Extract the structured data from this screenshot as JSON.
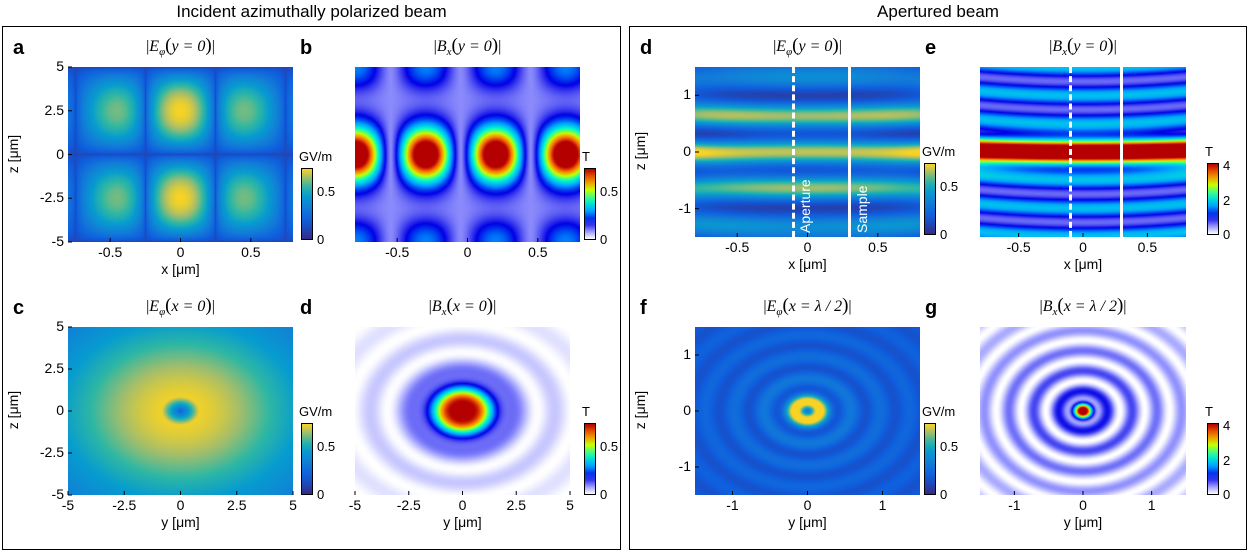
{
  "sections": {
    "left_title": "Incident azimuthally polarized beam",
    "right_title": "Apertured beam"
  },
  "labels": {
    "aperture": "Aperture",
    "sample": "Sample"
  },
  "chart_data": [
    {
      "letter": "a",
      "type": "heatmap",
      "title": "|Eφ(y=0)|",
      "xlabel": "x [μm]",
      "ylabel": "z [μm]",
      "xlim": [
        -0.8,
        0.8
      ],
      "ylim": [
        -5,
        5
      ],
      "xticks": [
        "-0.5",
        "0",
        "0.5"
      ],
      "yticks": [
        "-5",
        "-2.5",
        "0",
        "2.5",
        "5"
      ],
      "colorbar": {
        "unit": "GV/m",
        "ticks": [
          "0",
          "0.5"
        ],
        "colormap": "parula"
      }
    },
    {
      "letter": "b",
      "type": "heatmap",
      "title": "|Bx(y=0)|",
      "xlabel": "",
      "ylabel": "",
      "xlim": [
        -0.8,
        0.8
      ],
      "ylim": [
        -5,
        5
      ],
      "xticks": [
        "-0.5",
        "0",
        "0.5"
      ],
      "yticks": [],
      "colorbar": {
        "unit": "T",
        "ticks": [
          "0",
          "0.5"
        ],
        "colormap": "jet"
      }
    },
    {
      "letter": "c",
      "type": "heatmap",
      "title": "|Eφ(x=0)|",
      "xlabel": "y [μm]",
      "ylabel": "z [μm]",
      "xlim": [
        -5,
        5
      ],
      "ylim": [
        -5,
        5
      ],
      "xticks": [
        "-5",
        "-2.5",
        "0",
        "2.5",
        "5"
      ],
      "yticks": [
        "-5",
        "-2.5",
        "0",
        "2.5",
        "5"
      ],
      "colorbar": {
        "unit": "GV/m",
        "ticks": [
          "0",
          "0.5"
        ],
        "colormap": "parula"
      }
    },
    {
      "letter": "d",
      "type": "heatmap",
      "title": "|Bx(x=0)|",
      "xlabel": "y [μm]",
      "ylabel": "",
      "xlim": [
        -5,
        5
      ],
      "ylim": [
        -5,
        5
      ],
      "xticks": [
        "-5",
        "-2.5",
        "0",
        "2.5",
        "5"
      ],
      "yticks": [],
      "colorbar": {
        "unit": "T",
        "ticks": [
          "0",
          "0.5"
        ],
        "colormap": "jet"
      }
    },
    {
      "letter": "d",
      "type": "heatmap",
      "title": "|Eφ(y=0)|",
      "xlabel": "x [μm]",
      "ylabel": "z [μm]",
      "xlim": [
        -0.8,
        0.8
      ],
      "ylim": [
        -1.5,
        1.5
      ],
      "xticks": [
        "-0.5",
        "0",
        "0.5"
      ],
      "yticks": [
        "-1",
        "0",
        "1"
      ],
      "colorbar": {
        "unit": "GV/m",
        "ticks": [
          "0",
          "0.5"
        ],
        "colormap": "parula"
      },
      "annotations": [
        {
          "text": "Aperture",
          "x": -0.1,
          "style": "dashed"
        },
        {
          "text": "Sample",
          "x": 0.3,
          "style": "solid"
        }
      ]
    },
    {
      "letter": "e",
      "type": "heatmap",
      "title": "|Bx(y=0)|",
      "xlabel": "x [μm]",
      "ylabel": "",
      "xlim": [
        -0.8,
        0.8
      ],
      "ylim": [
        -1.5,
        1.5
      ],
      "xticks": [
        "-0.5",
        "0",
        "0.5"
      ],
      "yticks": [],
      "colorbar": {
        "unit": "T",
        "ticks": [
          "0",
          "2",
          "4"
        ],
        "colormap": "jet"
      },
      "annotations": [
        {
          "x": -0.1,
          "style": "dashed"
        },
        {
          "x": 0.3,
          "style": "solid"
        }
      ]
    },
    {
      "letter": "f",
      "type": "heatmap",
      "title": "|Eφ(x=λ/2)|",
      "xlabel": "y [μm]",
      "ylabel": "z [μm]",
      "xlim": [
        -1.5,
        1.5
      ],
      "ylim": [
        -1.5,
        1.5
      ],
      "xticks": [
        "-1",
        "0",
        "1"
      ],
      "yticks": [
        "-1",
        "0",
        "1"
      ],
      "colorbar": {
        "unit": "GV/m",
        "ticks": [
          "0",
          "0.5"
        ],
        "colormap": "parula"
      }
    },
    {
      "letter": "g",
      "type": "heatmap",
      "title": "|Bx(x=λ/2)|",
      "xlabel": "y [μm]",
      "ylabel": "",
      "xlim": [
        -1.5,
        1.5
      ],
      "ylim": [
        -1.5,
        1.5
      ],
      "xticks": [
        "-1",
        "0",
        "1"
      ],
      "yticks": [],
      "colorbar": {
        "unit": "T",
        "ticks": [
          "0",
          "2",
          "4"
        ],
        "colormap": "jet"
      }
    }
  ]
}
